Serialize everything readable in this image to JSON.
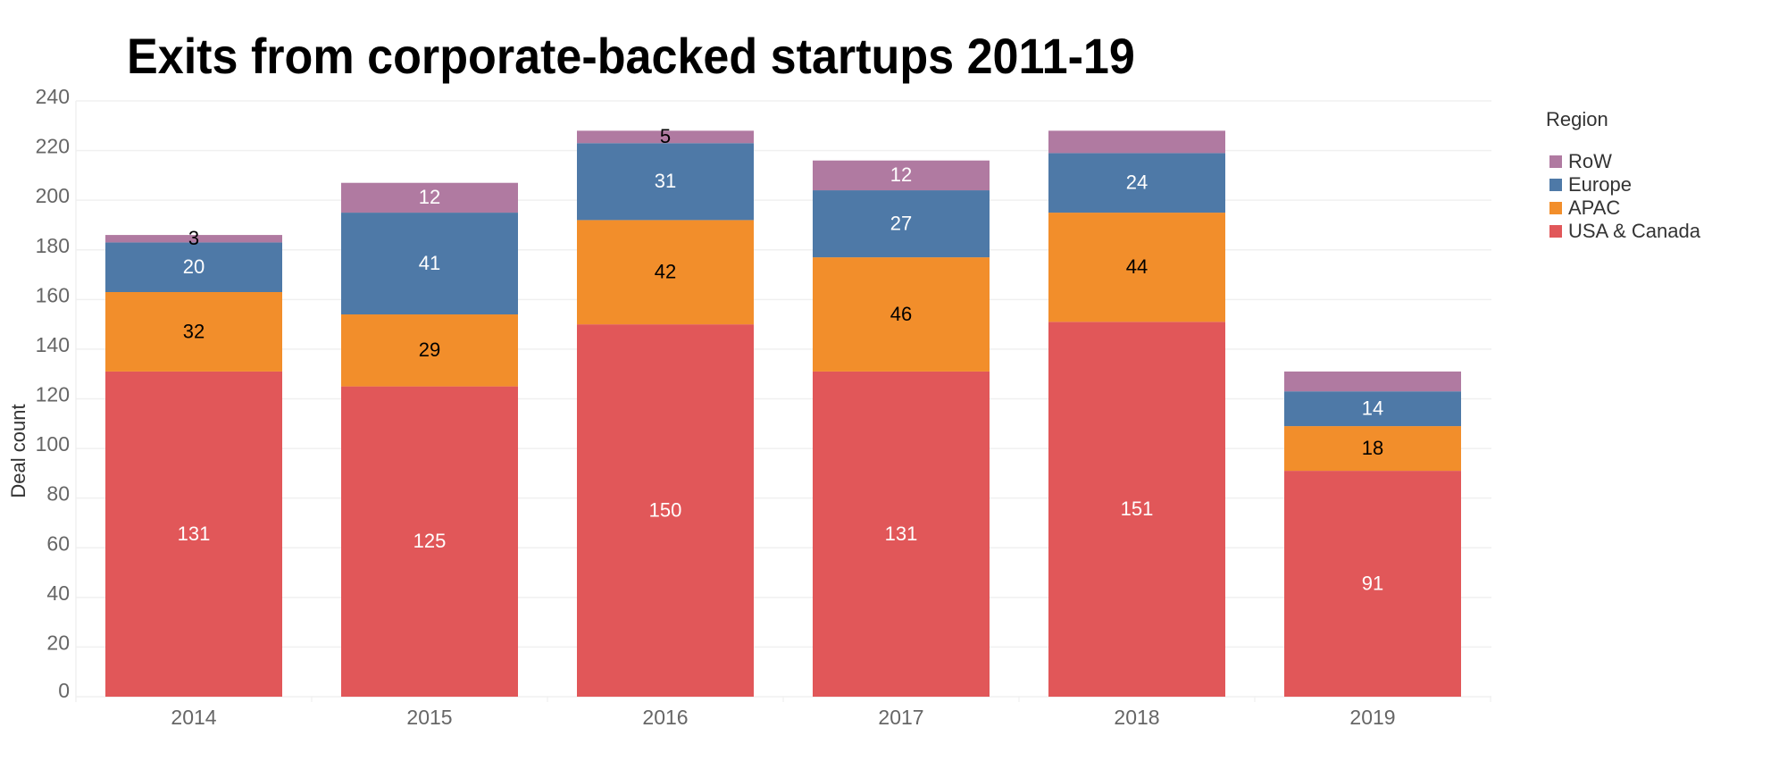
{
  "chart_data": {
    "type": "bar",
    "stacked": true,
    "title": "Exits from corporate-backed startups 2011-19",
    "xlabel": "",
    "ylabel": "Deal count",
    "ylim": [
      0,
      240
    ],
    "yticks": [
      0,
      20,
      40,
      60,
      80,
      100,
      120,
      140,
      160,
      180,
      200,
      220,
      240
    ],
    "grid": true,
    "categories": [
      "2014",
      "2015",
      "2016",
      "2017",
      "2018",
      "2019"
    ],
    "series": [
      {
        "name": "USA & Canada",
        "color": "#E15759",
        "label_color": "#ffffff",
        "values": [
          131,
          125,
          150,
          131,
          151,
          91
        ],
        "labels": [
          "131",
          "125",
          "150",
          "131",
          "151",
          "91"
        ]
      },
      {
        "name": "APAC",
        "color": "#F28E2B",
        "label_color": "#000000",
        "values": [
          32,
          29,
          42,
          46,
          44,
          18
        ],
        "labels": [
          "32",
          "29",
          "42",
          "46",
          "44",
          "18"
        ]
      },
      {
        "name": "Europe",
        "color": "#4E79A7",
        "label_color": "#ffffff",
        "values": [
          20,
          41,
          31,
          27,
          24,
          14
        ],
        "labels": [
          "20",
          "41",
          "31",
          "27",
          "24",
          "14"
        ]
      },
      {
        "name": "RoW",
        "color": "#B07AA1",
        "label_color": "#ffffff",
        "values": [
          3,
          12,
          5,
          12,
          9,
          8
        ],
        "labels": [
          "3",
          "12",
          "5",
          "12",
          "",
          ""
        ]
      }
    ],
    "legend": {
      "title": "Region",
      "position": "right",
      "order": [
        "RoW",
        "Europe",
        "APAC",
        "USA & Canada"
      ]
    }
  }
}
